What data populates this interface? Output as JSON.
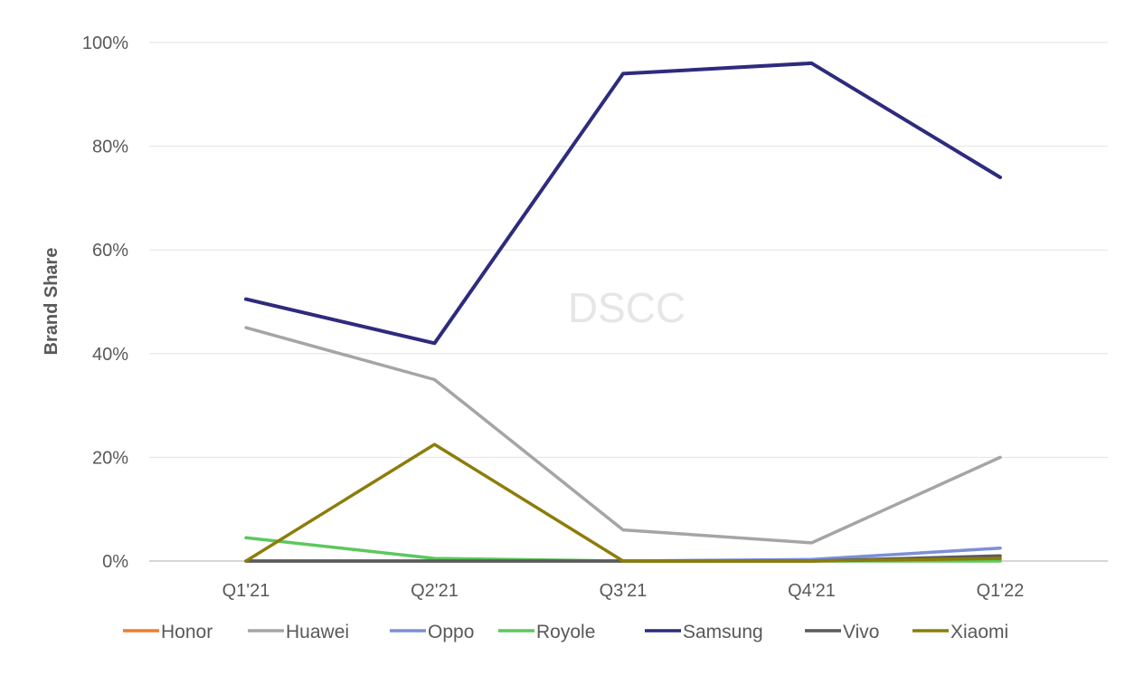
{
  "chart_data": {
    "type": "line",
    "title": "",
    "xlabel": "",
    "ylabel": "Brand Share",
    "watermark": "DSCC",
    "categories": [
      "Q1'21",
      "Q2'21",
      "Q3'21",
      "Q4'21",
      "Q1'22"
    ],
    "ylim": [
      0,
      100
    ],
    "yticks": [
      0,
      20,
      40,
      60,
      80,
      100
    ],
    "ytick_labels": [
      "0%",
      "20%",
      "40%",
      "60%",
      "80%",
      "100%"
    ],
    "grid": true,
    "legend_position": "bottom",
    "series": [
      {
        "name": "Honor",
        "color": "#ED7D31",
        "values": [
          0,
          0,
          0,
          0,
          0.3
        ]
      },
      {
        "name": "Huawei",
        "color": "#A5A5A5",
        "values": [
          45,
          35,
          6,
          3.5,
          20
        ]
      },
      {
        "name": "Oppo",
        "color": "#7B8FD9",
        "values": [
          0,
          0,
          0,
          0.3,
          2.5
        ]
      },
      {
        "name": "Royole",
        "color": "#5CC85C",
        "values": [
          4.5,
          0.5,
          0,
          0,
          0
        ]
      },
      {
        "name": "Samsung",
        "color": "#2E2B7E",
        "values": [
          50.5,
          42,
          94,
          96,
          74
        ]
      },
      {
        "name": "Vivo",
        "color": "#5A5A5A",
        "values": [
          0,
          0,
          0,
          0,
          1
        ]
      },
      {
        "name": "Xiaomi",
        "color": "#8C7D0A",
        "values": [
          0,
          22.5,
          0,
          0,
          0.5
        ]
      }
    ]
  }
}
